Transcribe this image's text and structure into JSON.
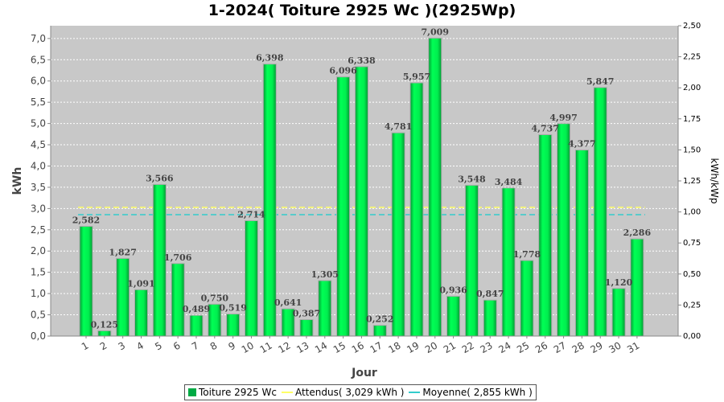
{
  "chart_data": {
    "type": "bar",
    "title": "1-2024( Toiture 2925 Wc )(2925Wp)",
    "xlabel": "Jour",
    "ylabel": "kWh",
    "ylabel_right": "kWh/kWp",
    "ylim": [
      0,
      7.3
    ],
    "ylim_right": [
      0,
      2.5
    ],
    "yticks": [
      "0,0",
      "0,5",
      "1,0",
      "1,5",
      "2,0",
      "2,5",
      "3,0",
      "3,5",
      "4,0",
      "4,5",
      "5,0",
      "5,5",
      "6,0",
      "6,5",
      "7,0"
    ],
    "yticks_right": [
      "0,00",
      "0,25",
      "0,50",
      "0,75",
      "1,00",
      "1,25",
      "1,50",
      "1,75",
      "2,00",
      "2,25",
      "2,50"
    ],
    "grid": true,
    "legend_position": "bottom",
    "categories": [
      "1",
      "2",
      "3",
      "4",
      "5",
      "6",
      "7",
      "8",
      "9",
      "10",
      "11",
      "12",
      "13",
      "14",
      "15",
      "16",
      "17",
      "18",
      "19",
      "20",
      "21",
      "22",
      "23",
      "24",
      "25",
      "26",
      "27",
      "28",
      "29",
      "30",
      "31"
    ],
    "series": [
      {
        "name": "Toiture 2925 Wc",
        "color": "#00cc44",
        "values": [
          2.582,
          0.125,
          1.827,
          1.091,
          3.566,
          1.706,
          0.489,
          0.75,
          0.519,
          2.714,
          6.398,
          0.641,
          0.387,
          1.305,
          6.096,
          6.338,
          0.252,
          4.781,
          5.957,
          7.009,
          0.936,
          3.548,
          0.847,
          3.484,
          1.778,
          4.737,
          4.997,
          4.377,
          5.847,
          1.12,
          2.286
        ],
        "labels": [
          "2,582",
          "0,125",
          "1,827",
          "1,091",
          "3,566",
          "1,706",
          "0,489",
          "0,750",
          "0,519",
          "2,714",
          "6,398",
          "0,641",
          "0,387",
          "1,305",
          "6,096",
          "6,338",
          "0,252",
          "4,781",
          "5,957",
          "7,009",
          "0,936",
          "3,548",
          "0,847",
          "3,484",
          "1,778",
          "4,737",
          "4,997",
          "4,377",
          "5,847",
          "1,120",
          "2,286"
        ]
      }
    ],
    "lines": [
      {
        "name": "Attendus( 3,029 kWh )",
        "value": 3.029,
        "color": "#ffff66"
      },
      {
        "name": "Moyenne( 2,855 kWh )",
        "value": 2.855,
        "color": "#33cccc"
      }
    ]
  }
}
